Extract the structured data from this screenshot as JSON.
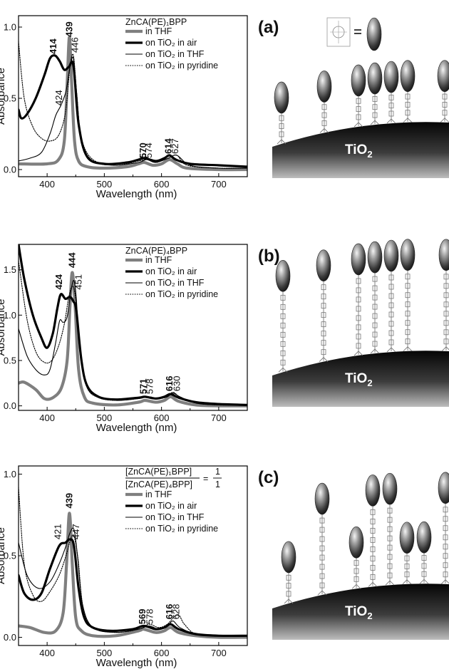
{
  "colors": {
    "thf": "#7f7f7f",
    "air": "#000000",
    "tio2_thf": "#000000",
    "pyridine": "#000000"
  },
  "surface_label": "TiO",
  "surface_sub": "2",
  "chart_data": [
    {
      "type": "line",
      "panel_label": "(a)",
      "xlabel": "Wavelength (nm)",
      "ylabel": "Absorbance",
      "xlim": [
        350,
        750
      ],
      "ylim": [
        -0.05,
        1.08
      ],
      "xticks": [
        400,
        500,
        600,
        700
      ],
      "yticks": [
        0.0,
        0.5,
        1.0
      ],
      "ytick_labels": [
        "0.0",
        "0.5",
        "1.0"
      ],
      "legend": {
        "title": "ZnCA(PE)₁BPP",
        "entries": [
          "in THF",
          "on TiO₂ in air",
          "on TiO₂ in THF",
          "on TiO₂ in pyridine"
        ]
      },
      "peak_labels": [
        {
          "text": "439",
          "x": 439,
          "y": 0.93,
          "bold": true,
          "gray": true
        },
        {
          "text": "414",
          "x": 411,
          "y": 0.81,
          "bold": true
        },
        {
          "text": "446",
          "x": 449,
          "y": 0.82,
          "bold": false
        },
        {
          "text": "424",
          "x": 421,
          "y": 0.45,
          "bold": false
        },
        {
          "text": "570",
          "x": 568,
          "y": 0.08,
          "bold": true
        },
        {
          "text": "574",
          "x": 578,
          "y": 0.08,
          "bold": false
        },
        {
          "text": "614",
          "x": 612,
          "y": 0.11,
          "bold": true
        },
        {
          "text": "627",
          "x": 624,
          "y": 0.11,
          "bold": false
        }
      ],
      "series": [
        {
          "name": "in THF",
          "style": "thf",
          "x": [
            350,
            400,
            420,
            430,
            435,
            439,
            443,
            448,
            455,
            470,
            500,
            540,
            560,
            570,
            585,
            600,
            614,
            628,
            645,
            700,
            750
          ],
          "y": [
            0.04,
            0.04,
            0.07,
            0.2,
            0.6,
            0.93,
            0.6,
            0.2,
            0.06,
            0.02,
            0.01,
            0.02,
            0.04,
            0.05,
            0.03,
            0.04,
            0.07,
            0.04,
            0.01,
            0.0,
            0.0
          ]
        },
        {
          "name": "on TiO₂ in air",
          "style": "air",
          "x": [
            350,
            355,
            365,
            380,
            395,
            405,
            414,
            422,
            430,
            438,
            446,
            455,
            470,
            500,
            540,
            560,
            570,
            590,
            605,
            614,
            625,
            650,
            700,
            750
          ],
          "y": [
            0.42,
            0.36,
            0.39,
            0.5,
            0.66,
            0.78,
            0.8,
            0.76,
            0.7,
            0.72,
            0.73,
            0.32,
            0.09,
            0.04,
            0.05,
            0.07,
            0.08,
            0.06,
            0.08,
            0.1,
            0.07,
            0.04,
            0.03,
            0.02
          ]
        },
        {
          "name": "on TiO₂ in THF",
          "style": "tio2_thf",
          "x": [
            350,
            370,
            390,
            405,
            415,
            424,
            433,
            440,
            446,
            452,
            460,
            480,
            520,
            560,
            574,
            590,
            612,
            627,
            650,
            700,
            750
          ],
          "y": [
            0.06,
            0.08,
            0.12,
            0.25,
            0.38,
            0.45,
            0.55,
            0.72,
            0.78,
            0.52,
            0.2,
            0.06,
            0.03,
            0.05,
            0.07,
            0.05,
            0.08,
            0.1,
            0.03,
            0.01,
            0.01
          ]
        },
        {
          "name": "on TiO₂ in pyridine",
          "style": "pyridine",
          "x": [
            350,
            360,
            375,
            390,
            405,
            420,
            432,
            440,
            446,
            452,
            460,
            480,
            520,
            560,
            575,
            590,
            612,
            627,
            645,
            700,
            750
          ],
          "y": [
            0.9,
            0.5,
            0.3,
            0.22,
            0.2,
            0.24,
            0.4,
            0.72,
            0.8,
            0.52,
            0.22,
            0.07,
            0.03,
            0.06,
            0.07,
            0.05,
            0.08,
            0.1,
            0.03,
            0.01,
            0.01
          ]
        }
      ]
    },
    {
      "type": "line",
      "panel_label": "(b)",
      "xlabel": "Wavelength (nm)",
      "ylabel": "Absorbance",
      "xlim": [
        350,
        750
      ],
      "ylim": [
        -0.05,
        1.78
      ],
      "xticks": [
        400,
        500,
        600,
        700
      ],
      "yticks": [
        0.0,
        0.5,
        1.0,
        1.5
      ],
      "ytick_labels": [
        "0.0",
        "0.5",
        "1.0",
        "1.5"
      ],
      "legend": {
        "title": "ZnCA(PE)₄BPP",
        "entries": [
          "in THF",
          "on TiO₂ in air",
          "on TiO₂ in THF",
          "on TiO₂ in pyridine"
        ]
      },
      "peak_labels": [
        {
          "text": "444",
          "x": 444,
          "y": 1.52,
          "bold": true,
          "gray": true
        },
        {
          "text": "424",
          "x": 421,
          "y": 1.28,
          "bold": true
        },
        {
          "text": "451",
          "x": 455,
          "y": 1.28,
          "bold": false
        },
        {
          "text": "571",
          "x": 569,
          "y": 0.13,
          "bold": true
        },
        {
          "text": "578",
          "x": 580,
          "y": 0.13,
          "bold": false
        },
        {
          "text": "616",
          "x": 614,
          "y": 0.16,
          "bold": true
        },
        {
          "text": "630",
          "x": 627,
          "y": 0.16,
          "bold": false
        }
      ],
      "series": [
        {
          "name": "in THF",
          "style": "thf",
          "x": [
            350,
            360,
            380,
            395,
            410,
            425,
            435,
            440,
            444,
            449,
            455,
            465,
            480,
            520,
            560,
            571,
            590,
            605,
            616,
            630,
            660,
            700,
            750
          ],
          "y": [
            0.25,
            0.26,
            0.18,
            0.08,
            0.09,
            0.2,
            0.5,
            1.1,
            1.47,
            1.1,
            0.4,
            0.1,
            0.03,
            0.01,
            0.04,
            0.06,
            0.04,
            0.06,
            0.1,
            0.05,
            0.01,
            0.0,
            0.0
          ]
        },
        {
          "name": "on TiO₂ in air",
          "style": "air",
          "x": [
            350,
            360,
            375,
            390,
            400,
            410,
            418,
            424,
            432,
            440,
            446,
            451,
            460,
            470,
            490,
            520,
            560,
            571,
            590,
            605,
            616,
            630,
            660,
            700,
            750
          ],
          "y": [
            1.78,
            1.4,
            1.0,
            0.75,
            0.64,
            0.8,
            1.08,
            1.23,
            1.18,
            1.2,
            1.15,
            1.05,
            0.5,
            0.22,
            0.1,
            0.07,
            0.09,
            0.1,
            0.08,
            0.1,
            0.13,
            0.09,
            0.04,
            0.02,
            0.01
          ]
        },
        {
          "name": "on TiO₂ in THF",
          "style": "tio2_thf",
          "x": [
            350,
            365,
            380,
            395,
            405,
            415,
            422,
            428,
            435,
            442,
            447,
            451,
            458,
            470,
            490,
            520,
            560,
            575,
            595,
            610,
            620,
            632,
            660,
            700,
            750
          ],
          "y": [
            0.85,
            0.55,
            0.4,
            0.34,
            0.4,
            0.7,
            0.94,
            0.92,
            0.98,
            1.28,
            1.38,
            1.18,
            0.55,
            0.2,
            0.1,
            0.06,
            0.08,
            0.1,
            0.08,
            0.1,
            0.14,
            0.1,
            0.03,
            0.01,
            0.01
          ]
        },
        {
          "name": "on TiO₂ in pyridine",
          "style": "pyridine",
          "x": [
            350,
            365,
            380,
            395,
            408,
            420,
            430,
            438,
            445,
            451,
            458,
            470,
            490,
            520,
            560,
            578,
            595,
            610,
            620,
            632,
            660,
            700,
            750
          ],
          "y": [
            1.6,
            0.95,
            0.6,
            0.48,
            0.5,
            0.66,
            0.9,
            1.2,
            1.32,
            1.12,
            0.55,
            0.2,
            0.09,
            0.06,
            0.08,
            0.1,
            0.08,
            0.1,
            0.15,
            0.1,
            0.03,
            0.01,
            0.01
          ]
        }
      ]
    },
    {
      "type": "line",
      "panel_label": "(c)",
      "xlabel": "Wavelength (nm)",
      "ylabel": "Absorbance",
      "xlim": [
        350,
        750
      ],
      "ylim": [
        -0.05,
        1.05
      ],
      "xticks": [
        400,
        500,
        600,
        700
      ],
      "yticks": [
        0.0,
        0.5,
        1.0
      ],
      "ytick_labels": [
        "0.0",
        "0.5",
        "1.0"
      ],
      "legend": {
        "ratio_numerator": "[ZnCA(PE)₁BPP]",
        "ratio_denominator": "[ZnCA(PE)₄BPP]",
        "ratio_equals": "=",
        "ratio_value_num": "1",
        "ratio_value_den": "1",
        "entries": [
          "in THF",
          "on TiO₂ in air",
          "on TiO₂ in THF",
          "on TiO₂ in pyridine"
        ]
      },
      "peak_labels": [
        {
          "text": "439",
          "x": 439,
          "y": 0.79,
          "bold": true,
          "gray": true
        },
        {
          "text": "421",
          "x": 419,
          "y": 0.6,
          "bold": false
        },
        {
          "text": "447",
          "x": 451,
          "y": 0.6,
          "bold": false
        },
        {
          "text": "569",
          "x": 567,
          "y": 0.08,
          "bold": true
        },
        {
          "text": "578",
          "x": 580,
          "y": 0.08,
          "bold": false
        },
        {
          "text": "616",
          "x": 614,
          "y": 0.11,
          "bold": true
        },
        {
          "text": "628",
          "x": 626,
          "y": 0.11,
          "bold": false
        }
      ],
      "series": [
        {
          "name": "in THF",
          "style": "thf",
          "x": [
            350,
            370,
            395,
            415,
            428,
            434,
            439,
            444,
            450,
            460,
            480,
            520,
            560,
            569,
            590,
            605,
            616,
            630,
            660,
            700,
            750
          ],
          "y": [
            0.07,
            0.06,
            0.03,
            0.04,
            0.15,
            0.45,
            0.76,
            0.45,
            0.12,
            0.04,
            0.01,
            0.01,
            0.04,
            0.05,
            0.03,
            0.04,
            0.06,
            0.03,
            0.01,
            0.0,
            0.0
          ]
        },
        {
          "name": "on TiO₂ in air",
          "style": "air",
          "x": [
            350,
            360,
            375,
            390,
            405,
            421,
            432,
            440,
            447,
            455,
            465,
            480,
            510,
            550,
            569,
            590,
            605,
            616,
            630,
            660,
            700,
            750
          ],
          "y": [
            0.38,
            0.27,
            0.23,
            0.27,
            0.42,
            0.56,
            0.58,
            0.6,
            0.56,
            0.3,
            0.12,
            0.06,
            0.04,
            0.05,
            0.07,
            0.05,
            0.06,
            0.08,
            0.05,
            0.02,
            0.01,
            0.01
          ]
        },
        {
          "name": "on TiO₂ in THF",
          "style": "tio2_thf",
          "x": [
            350,
            365,
            385,
            405,
            421,
            432,
            440,
            447,
            453,
            462,
            480,
            520,
            560,
            578,
            595,
            610,
            620,
            632,
            660,
            700,
            750
          ],
          "y": [
            0.58,
            0.38,
            0.3,
            0.34,
            0.45,
            0.55,
            0.64,
            0.66,
            0.5,
            0.2,
            0.06,
            0.03,
            0.05,
            0.07,
            0.05,
            0.07,
            0.1,
            0.06,
            0.02,
            0.01,
            0.01
          ]
        },
        {
          "name": "on TiO₂ in pyridine",
          "style": "pyridine",
          "x": [
            350,
            360,
            375,
            390,
            405,
            421,
            433,
            441,
            447,
            454,
            463,
            480,
            520,
            560,
            578,
            595,
            610,
            628,
            640,
            660,
            700,
            750
          ],
          "y": [
            0.92,
            0.45,
            0.26,
            0.22,
            0.28,
            0.38,
            0.5,
            0.6,
            0.62,
            0.48,
            0.18,
            0.06,
            0.03,
            0.05,
            0.08,
            0.06,
            0.08,
            0.14,
            0.08,
            0.02,
            0.01,
            0.01
          ]
        }
      ]
    }
  ]
}
